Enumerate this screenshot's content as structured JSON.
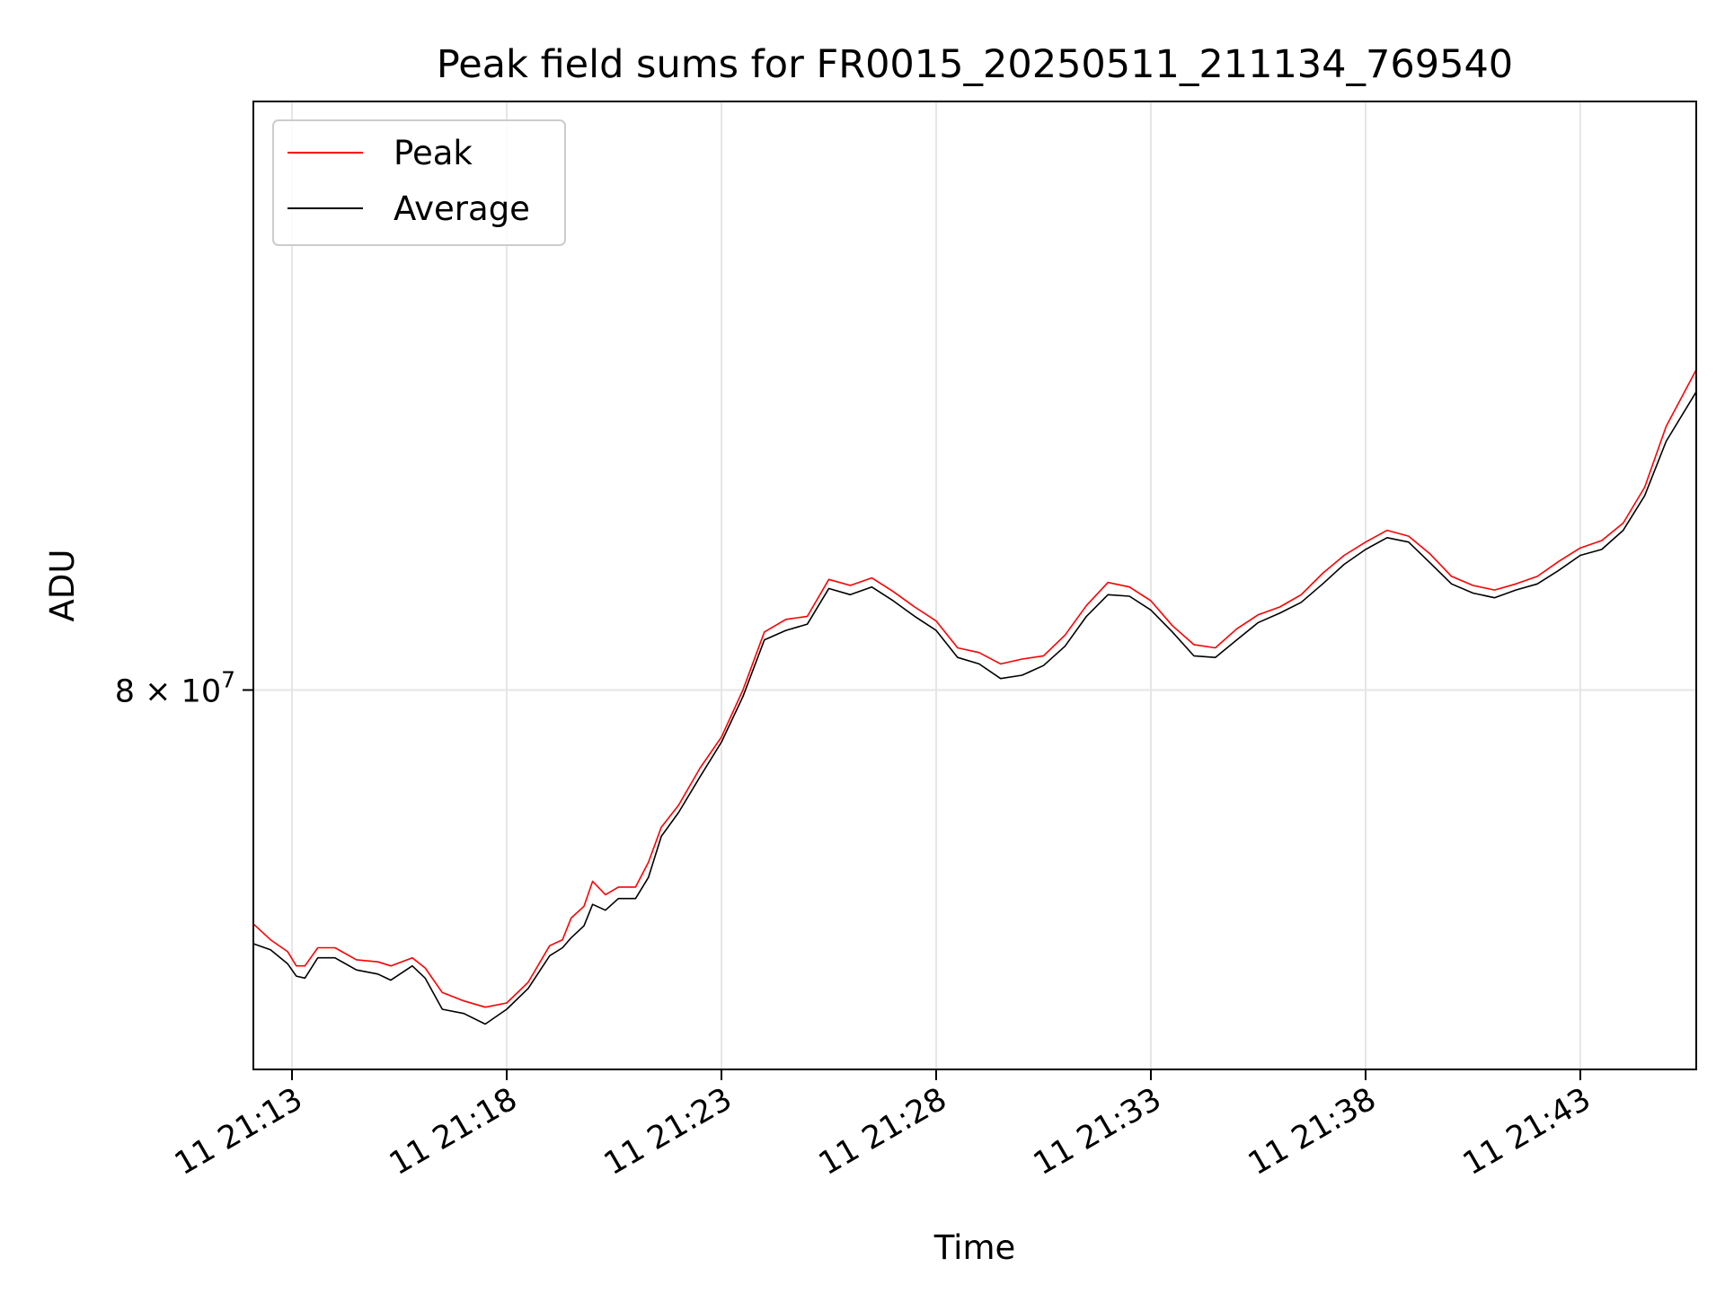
{
  "chart_data": {
    "type": "line",
    "title": "Peak field sums for FR0015_20250511_211134_769540",
    "xlabel": "Time",
    "ylabel": "ADU",
    "y_scale": "log",
    "x_tick_labels": [
      "11 21:13",
      "11 21:18",
      "11 21:23",
      "11 21:28",
      "11 21:33",
      "11 21:38",
      "11 21:43"
    ],
    "x_tick_minutes": [
      13,
      18,
      23,
      28,
      33,
      38,
      43
    ],
    "x_range_minutes": [
      12.1,
      45.7
    ],
    "y_tick": {
      "value": 80000000,
      "label_base": "8 × 10",
      "label_exp": "7"
    },
    "ylim": [
      60000000,
      125000000
    ],
    "grid": true,
    "legend": {
      "position": "top-left",
      "entries": [
        {
          "name": "Peak",
          "color": "#ff0000"
        },
        {
          "name": "Average",
          "color": "#000000"
        }
      ]
    },
    "series": [
      {
        "name": "Peak",
        "color": "#ff0000",
        "points": [
          [
            12.1,
            67.0
          ],
          [
            12.5,
            66.2
          ],
          [
            12.9,
            65.6
          ],
          [
            13.1,
            64.9
          ],
          [
            13.3,
            64.9
          ],
          [
            13.6,
            65.8
          ],
          [
            14.0,
            65.8
          ],
          [
            14.5,
            65.2
          ],
          [
            15.0,
            65.1
          ],
          [
            15.3,
            64.9
          ],
          [
            15.8,
            65.3
          ],
          [
            16.1,
            64.8
          ],
          [
            16.5,
            63.6
          ],
          [
            17.0,
            63.2
          ],
          [
            17.5,
            62.9
          ],
          [
            18.0,
            63.1
          ],
          [
            18.5,
            64.1
          ],
          [
            19.0,
            65.9
          ],
          [
            19.3,
            66.2
          ],
          [
            19.5,
            67.3
          ],
          [
            19.8,
            67.9
          ],
          [
            20.0,
            69.2
          ],
          [
            20.3,
            68.5
          ],
          [
            20.6,
            68.9
          ],
          [
            21.0,
            68.9
          ],
          [
            21.3,
            70.2
          ],
          [
            21.6,
            72.1
          ],
          [
            22.0,
            73.3
          ],
          [
            22.5,
            75.4
          ],
          [
            23.0,
            77.2
          ],
          [
            23.5,
            80.0
          ],
          [
            24.0,
            83.6
          ],
          [
            24.5,
            84.4
          ],
          [
            25.0,
            84.6
          ],
          [
            25.5,
            87.0
          ],
          [
            26.0,
            86.6
          ],
          [
            26.5,
            87.1
          ],
          [
            27.0,
            86.2
          ],
          [
            27.5,
            85.2
          ],
          [
            28.0,
            84.3
          ],
          [
            28.5,
            82.6
          ],
          [
            29.0,
            82.3
          ],
          [
            29.5,
            81.6
          ],
          [
            30.0,
            81.9
          ],
          [
            30.5,
            82.1
          ],
          [
            31.0,
            83.4
          ],
          [
            31.5,
            85.3
          ],
          [
            32.0,
            86.8
          ],
          [
            32.5,
            86.5
          ],
          [
            33.0,
            85.6
          ],
          [
            33.5,
            84.0
          ],
          [
            34.0,
            82.8
          ],
          [
            34.5,
            82.6
          ],
          [
            35.0,
            83.8
          ],
          [
            35.5,
            84.7
          ],
          [
            36.0,
            85.2
          ],
          [
            36.5,
            86.0
          ],
          [
            37.0,
            87.4
          ],
          [
            37.5,
            88.6
          ],
          [
            38.0,
            89.5
          ],
          [
            38.5,
            90.3
          ],
          [
            39.0,
            89.9
          ],
          [
            39.5,
            88.7
          ],
          [
            40.0,
            87.2
          ],
          [
            40.5,
            86.6
          ],
          [
            41.0,
            86.3
          ],
          [
            41.5,
            86.7
          ],
          [
            42.0,
            87.2
          ],
          [
            42.5,
            88.2
          ],
          [
            43.0,
            89.1
          ],
          [
            43.5,
            89.6
          ],
          [
            44.0,
            90.8
          ],
          [
            44.5,
            93.3
          ],
          [
            45.0,
            97.7
          ],
          [
            45.7,
            102.0
          ]
        ]
      },
      {
        "name": "Average",
        "color": "#000000",
        "points": [
          [
            12.1,
            66.0
          ],
          [
            12.5,
            65.7
          ],
          [
            12.9,
            65.0
          ],
          [
            13.1,
            64.4
          ],
          [
            13.3,
            64.3
          ],
          [
            13.6,
            65.3
          ],
          [
            14.0,
            65.3
          ],
          [
            14.5,
            64.7
          ],
          [
            15.0,
            64.5
          ],
          [
            15.3,
            64.2
          ],
          [
            15.8,
            64.9
          ],
          [
            16.1,
            64.3
          ],
          [
            16.5,
            62.8
          ],
          [
            17.0,
            62.6
          ],
          [
            17.5,
            62.1
          ],
          [
            18.0,
            62.8
          ],
          [
            18.5,
            63.8
          ],
          [
            19.0,
            65.4
          ],
          [
            19.3,
            65.8
          ],
          [
            19.5,
            66.3
          ],
          [
            19.8,
            66.9
          ],
          [
            20.0,
            68.0
          ],
          [
            20.3,
            67.7
          ],
          [
            20.6,
            68.3
          ],
          [
            21.0,
            68.3
          ],
          [
            21.3,
            69.4
          ],
          [
            21.6,
            71.6
          ],
          [
            22.0,
            72.9
          ],
          [
            22.5,
            74.9
          ],
          [
            23.0,
            76.9
          ],
          [
            23.5,
            79.6
          ],
          [
            24.0,
            83.1
          ],
          [
            24.5,
            83.7
          ],
          [
            25.0,
            84.1
          ],
          [
            25.5,
            86.4
          ],
          [
            26.0,
            86.0
          ],
          [
            26.5,
            86.5
          ],
          [
            27.0,
            85.6
          ],
          [
            27.5,
            84.6
          ],
          [
            28.0,
            83.7
          ],
          [
            28.5,
            82.0
          ],
          [
            29.0,
            81.6
          ],
          [
            29.5,
            80.7
          ],
          [
            30.0,
            80.9
          ],
          [
            30.5,
            81.5
          ],
          [
            31.0,
            82.7
          ],
          [
            31.5,
            84.6
          ],
          [
            32.0,
            86.0
          ],
          [
            32.5,
            85.9
          ],
          [
            33.0,
            85.0
          ],
          [
            33.5,
            83.6
          ],
          [
            34.0,
            82.1
          ],
          [
            34.5,
            82.0
          ],
          [
            35.0,
            83.1
          ],
          [
            35.5,
            84.2
          ],
          [
            36.0,
            84.8
          ],
          [
            36.5,
            85.5
          ],
          [
            37.0,
            86.7
          ],
          [
            37.5,
            88.0
          ],
          [
            38.0,
            89.0
          ],
          [
            38.5,
            89.8
          ],
          [
            39.0,
            89.5
          ],
          [
            39.5,
            88.1
          ],
          [
            40.0,
            86.7
          ],
          [
            40.5,
            86.1
          ],
          [
            41.0,
            85.8
          ],
          [
            41.5,
            86.3
          ],
          [
            42.0,
            86.7
          ],
          [
            42.5,
            87.6
          ],
          [
            43.0,
            88.6
          ],
          [
            43.5,
            89.0
          ],
          [
            44.0,
            90.3
          ],
          [
            44.5,
            92.7
          ],
          [
            45.0,
            96.6
          ],
          [
            45.7,
            100.3
          ]
        ]
      }
    ]
  }
}
